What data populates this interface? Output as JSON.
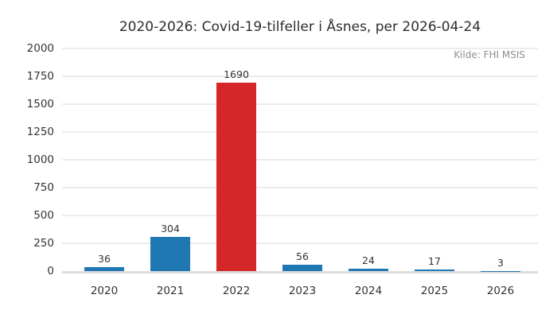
{
  "chart_data": {
    "type": "bar",
    "title": "2020-2026: Covid-19-tilfeller i Åsnes, per 2026-04-24",
    "source": "Kilde: FHI MSIS",
    "categories": [
      "2020",
      "2021",
      "2022",
      "2023",
      "2024",
      "2025",
      "2026"
    ],
    "values": [
      36,
      304,
      1690,
      56,
      24,
      17,
      3
    ],
    "bar_colors": [
      "#1f77b4",
      "#1f77b4",
      "#d62728",
      "#1f77b4",
      "#1f77b4",
      "#1f77b4",
      "#1f77b4"
    ],
    "highlight_index": 2,
    "value_labels_shown": true,
    "xlabel": "",
    "ylabel": "",
    "ylim": [
      0,
      2000
    ],
    "yticks": [
      0,
      250,
      500,
      750,
      1000,
      1250,
      1500,
      1750,
      2000
    ],
    "grid": "horizontal",
    "legend": "none"
  },
  "colors": {
    "bar_blue": "#1f77b4",
    "bar_red": "#d62728",
    "grid_line": "#ececec",
    "axis_line": "#dcdcdc",
    "tick_text": "#333333",
    "title_text": "#2d2d2d",
    "source_text": "#8f8f8f",
    "background": "#ffffff"
  }
}
